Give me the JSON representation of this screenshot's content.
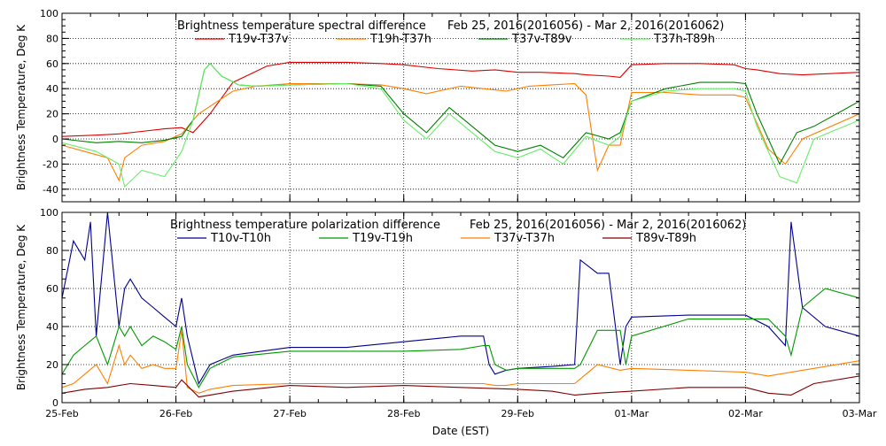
{
  "chart_data": [
    {
      "type": "line",
      "title": "Brightness temperature spectral difference",
      "date_range": "Feb 25, 2016(2016056) - Mar  2, 2016(2016062)",
      "ylabel": "Brightness Temperature, Deg K",
      "ylim": [
        -50,
        100
      ],
      "y_ticks": [
        "-40",
        "-20",
        "0",
        "20",
        "40",
        "60",
        "80",
        "100"
      ],
      "x_units": "days since 25-Feb (EST)",
      "xlim": [
        0,
        7
      ],
      "grid": "dotted, major ticks",
      "legend_placement": "top",
      "series": [
        {
          "name": "T19v-T37v",
          "color": "#dd0000",
          "x": [
            0,
            0.3,
            0.5,
            0.7,
            0.9,
            1.05,
            1.15,
            1.3,
            1.5,
            1.8,
            2.0,
            2.5,
            2.8,
            3.0,
            3.3,
            3.6,
            3.8,
            4.0,
            4.2,
            4.5,
            4.6,
            4.8,
            4.9,
            5.0,
            5.3,
            5.6,
            5.9,
            6.0,
            6.1,
            6.3,
            6.5,
            7.0
          ],
          "y": [
            2,
            3,
            4,
            6,
            8,
            9,
            5,
            20,
            45,
            58,
            61,
            61,
            60,
            59,
            56,
            54,
            55,
            53,
            53,
            52,
            51,
            50,
            49,
            59,
            60,
            60,
            59,
            56,
            55,
            52,
            51,
            53
          ]
        },
        {
          "name": "T19h-T37h",
          "color": "#ff7f00",
          "x": [
            0,
            0.2,
            0.4,
            0.5,
            0.55,
            0.7,
            0.9,
            1.05,
            1.2,
            1.5,
            1.7,
            2.0,
            2.5,
            2.8,
            3.0,
            3.2,
            3.5,
            3.7,
            3.9,
            4.1,
            4.3,
            4.5,
            4.6,
            4.7,
            4.8,
            4.9,
            5.0,
            5.3,
            5.6,
            5.9,
            6.0,
            6.2,
            6.35,
            6.5,
            7.0
          ],
          "y": [
            -5,
            -10,
            -15,
            -33,
            -15,
            -5,
            -2,
            4,
            20,
            38,
            42,
            44,
            44,
            43,
            40,
            36,
            42,
            40,
            38,
            42,
            43,
            44,
            35,
            -25,
            -5,
            -5,
            37,
            37,
            35,
            35,
            33,
            -8,
            -20,
            0,
            20
          ]
        },
        {
          "name": "T37v-T89v",
          "color": "#007f00",
          "x": [
            0,
            0.3,
            0.5,
            0.7,
            0.9,
            1.05,
            1.15,
            1.25,
            1.3,
            1.4,
            1.55,
            1.7,
            2.0,
            2.5,
            2.8,
            3.0,
            3.2,
            3.4,
            3.6,
            3.8,
            4.0,
            4.2,
            4.4,
            4.6,
            4.8,
            4.9,
            5.0,
            5.3,
            5.6,
            5.9,
            6.0,
            6.1,
            6.3,
            6.45,
            6.6,
            7.0
          ],
          "y": [
            0,
            -3,
            -2,
            -3,
            -1,
            2,
            15,
            55,
            60,
            50,
            43,
            42,
            43,
            44,
            42,
            20,
            5,
            25,
            10,
            -5,
            -10,
            -5,
            -15,
            5,
            0,
            5,
            30,
            40,
            45,
            45,
            44,
            20,
            -20,
            5,
            10,
            30
          ]
        },
        {
          "name": "T37h-T89h",
          "color": "#66ee66",
          "x": [
            0,
            0.3,
            0.5,
            0.55,
            0.7,
            0.9,
            1.05,
            1.15,
            1.25,
            1.3,
            1.4,
            1.55,
            1.7,
            2.0,
            2.5,
            2.8,
            3.0,
            3.2,
            3.4,
            3.6,
            3.8,
            4.0,
            4.2,
            4.4,
            4.6,
            4.8,
            4.9,
            5.0,
            5.3,
            5.6,
            5.9,
            6.0,
            6.1,
            6.3,
            6.45,
            6.6,
            7.0
          ],
          "y": [
            -3,
            -10,
            -20,
            -38,
            -25,
            -30,
            -10,
            15,
            55,
            60,
            50,
            43,
            42,
            43,
            44,
            40,
            15,
            0,
            20,
            5,
            -10,
            -15,
            -8,
            -20,
            2,
            -5,
            2,
            30,
            38,
            40,
            40,
            38,
            10,
            -30,
            -35,
            0,
            15
          ]
        }
      ]
    },
    {
      "type": "line",
      "title": "Brightness temperature polarization difference",
      "date_range": "Feb 25, 2016(2016056) - Mar  2, 2016(2016062)",
      "ylabel": "Brightness Temperature, Deg K",
      "ylim": [
        0,
        100
      ],
      "y_ticks": [
        "0",
        "20",
        "40",
        "60",
        "80",
        "100"
      ],
      "xlabel": "Date (EST)",
      "xlim": [
        0,
        7
      ],
      "x_ticks": [
        "25-Feb",
        "26-Feb",
        "27-Feb",
        "28-Feb",
        "29-Feb",
        "01-Mar",
        "02-Mar",
        "03-Mar"
      ],
      "grid": "dotted, major ticks",
      "legend_placement": "top",
      "series": [
        {
          "name": "T10v-T10h",
          "color": "#00008b",
          "x": [
            0,
            0.1,
            0.2,
            0.25,
            0.3,
            0.4,
            0.5,
            0.55,
            0.6,
            0.7,
            0.8,
            0.9,
            1.0,
            1.05,
            1.1,
            1.2,
            1.3,
            1.5,
            2.0,
            2.5,
            3.0,
            3.5,
            3.7,
            3.75,
            3.8,
            3.9,
            4.0,
            4.3,
            4.5,
            4.55,
            4.7,
            4.8,
            4.9,
            4.95,
            5.0,
            5.5,
            6.0,
            6.2,
            6.35,
            6.4,
            6.5,
            6.7,
            7.0
          ],
          "y": [
            55,
            85,
            75,
            95,
            35,
            100,
            40,
            60,
            65,
            55,
            50,
            45,
            40,
            55,
            35,
            10,
            20,
            25,
            29,
            29,
            32,
            35,
            35,
            20,
            15,
            17,
            18,
            19,
            20,
            75,
            68,
            68,
            20,
            40,
            45,
            46,
            46,
            40,
            30,
            95,
            50,
            40,
            35
          ]
        },
        {
          "name": "T19v-T19h",
          "color": "#009900",
          "x": [
            0,
            0.1,
            0.2,
            0.3,
            0.4,
            0.5,
            0.55,
            0.6,
            0.7,
            0.8,
            0.9,
            1.0,
            1.05,
            1.1,
            1.2,
            1.3,
            1.5,
            2.0,
            2.5,
            3.0,
            3.5,
            3.7,
            3.75,
            3.8,
            3.9,
            4.0,
            4.3,
            4.5,
            4.55,
            4.7,
            4.8,
            4.9,
            4.95,
            5.0,
            5.5,
            6.0,
            6.2,
            6.35,
            6.4,
            6.5,
            6.7,
            7.0
          ],
          "y": [
            15,
            25,
            30,
            35,
            20,
            40,
            35,
            40,
            30,
            35,
            32,
            28,
            40,
            20,
            8,
            18,
            24,
            27,
            27,
            27,
            28,
            30,
            30,
            20,
            17,
            18,
            18,
            18,
            20,
            38,
            38,
            38,
            20,
            35,
            44,
            44,
            44,
            35,
            25,
            50,
            60,
            55
          ]
        },
        {
          "name": "T37v-T37h",
          "color": "#ff7f00",
          "x": [
            0,
            0.1,
            0.2,
            0.3,
            0.4,
            0.5,
            0.55,
            0.6,
            0.7,
            0.8,
            0.9,
            1.0,
            1.05,
            1.1,
            1.2,
            1.3,
            1.5,
            2.0,
            2.5,
            3.0,
            3.5,
            3.7,
            3.8,
            3.9,
            4.0,
            4.3,
            4.5,
            4.6,
            4.7,
            4.9,
            5.0,
            5.5,
            6.0,
            6.2,
            6.4,
            6.6,
            7.0
          ],
          "y": [
            8,
            10,
            15,
            20,
            10,
            30,
            20,
            25,
            18,
            20,
            18,
            18,
            38,
            8,
            5,
            7,
            9,
            10,
            10,
            10,
            10,
            10,
            9,
            9,
            10,
            10,
            10,
            15,
            20,
            17,
            18,
            17,
            16,
            14,
            16,
            18,
            22
          ]
        },
        {
          "name": "T89v-T89h",
          "color": "#800000",
          "x": [
            0,
            0.2,
            0.4,
            0.6,
            0.8,
            1.0,
            1.05,
            1.2,
            1.5,
            2.0,
            2.5,
            3.0,
            3.5,
            4.0,
            4.3,
            4.5,
            4.7,
            5.0,
            5.5,
            6.0,
            6.2,
            6.4,
            6.6,
            7.0
          ],
          "y": [
            5,
            7,
            8,
            10,
            9,
            8,
            12,
            3,
            6,
            9,
            8,
            9,
            8,
            7,
            6,
            4,
            5,
            6,
            8,
            8,
            5,
            4,
            10,
            14
          ]
        }
      ]
    }
  ]
}
